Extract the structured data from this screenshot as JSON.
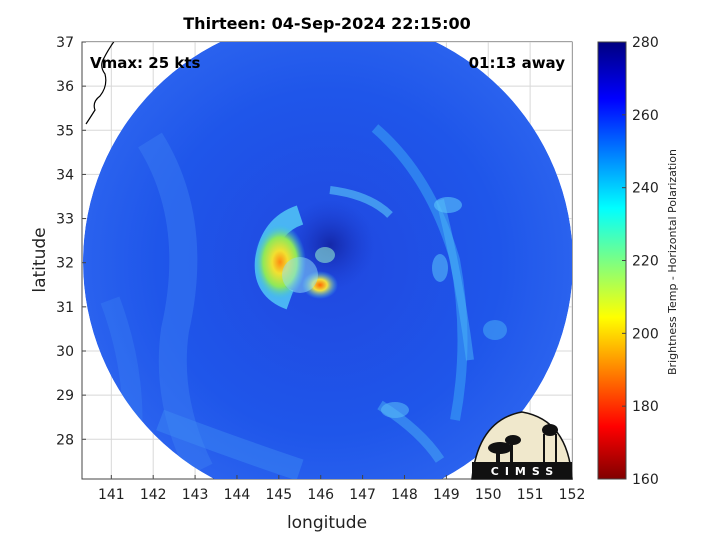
{
  "title": "Thirteen: 04-Sep-2024 22:15:00",
  "vmax_label": "Vmax: 25 kts",
  "time_away": "01:13 away",
  "logo_text": "CIMSS",
  "colors": {
    "background_field": "#1f52e8",
    "core_cold": "#e8d038",
    "eye_region": "#1a2fb8"
  },
  "chart_data": {
    "type": "heatmap",
    "xlabel": "longitude",
    "ylabel": "latitude",
    "xlim": [
      140.3,
      152
    ],
    "ylim": [
      27.1,
      37
    ],
    "xticks": [
      141,
      142,
      143,
      144,
      145,
      146,
      147,
      148,
      149,
      150,
      151,
      152
    ],
    "yticks": [
      28,
      29,
      30,
      31,
      32,
      33,
      34,
      35,
      36,
      37
    ],
    "grid": true,
    "swath_center": [
      146.1,
      32.0
    ],
    "storm_center": [
      146.0,
      32.2
    ],
    "colorbar": {
      "label": "Brightness Temp - Horizontal Polarization",
      "min": 160,
      "max": 280,
      "ticks": [
        160,
        180,
        200,
        220,
        240,
        260,
        280
      ],
      "colormap": "jet",
      "placement": "right"
    },
    "features": [
      {
        "type": "cold_core",
        "lon": 145.1,
        "lat": 31.9,
        "value": 195
      },
      {
        "type": "cold_core",
        "lon": 146.2,
        "lat": 31.45,
        "value": 205
      },
      {
        "type": "rainband_arc",
        "lon": 145.2,
        "lat": 32.2,
        "value": 225
      },
      {
        "type": "eye_warm",
        "lon": 146.2,
        "lat": 32.4,
        "value": 272
      }
    ]
  }
}
